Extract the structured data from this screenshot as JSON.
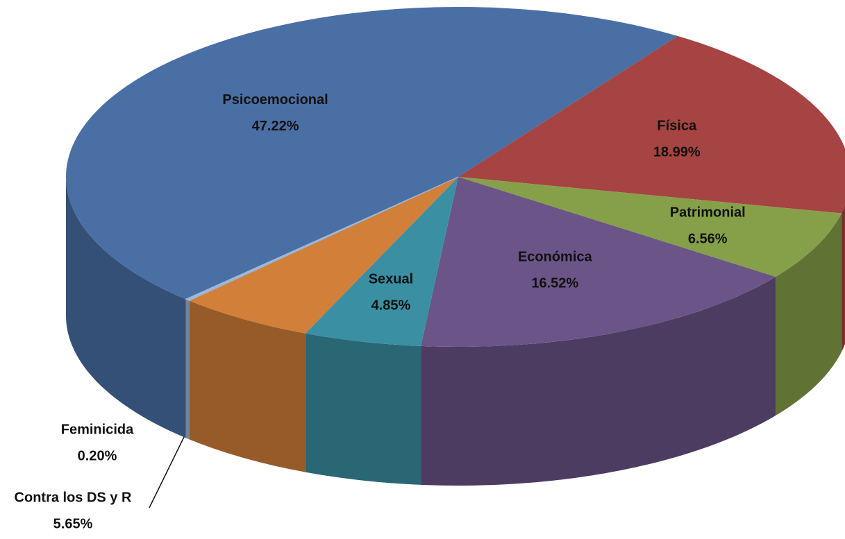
{
  "chart_data": {
    "type": "pie3d",
    "categories": [
      "Psicoemocional",
      "Física",
      "Patrimonial",
      "Económica",
      "Sexual",
      "Contra los DS y R",
      "Feminicida"
    ],
    "values": [
      47.22,
      18.99,
      6.56,
      16.52,
      4.85,
      5.65,
      0.2
    ],
    "value_labels": [
      "47.22%",
      "18.99%",
      "6.56%",
      "16.52%",
      "4.85%",
      "5.65%",
      "0.20%"
    ],
    "colors": [
      "#4a6fa5",
      "#a54442",
      "#86a04a",
      "#6b5487",
      "#3b8fa3",
      "#d27f3a",
      "#9bb7d9"
    ]
  }
}
